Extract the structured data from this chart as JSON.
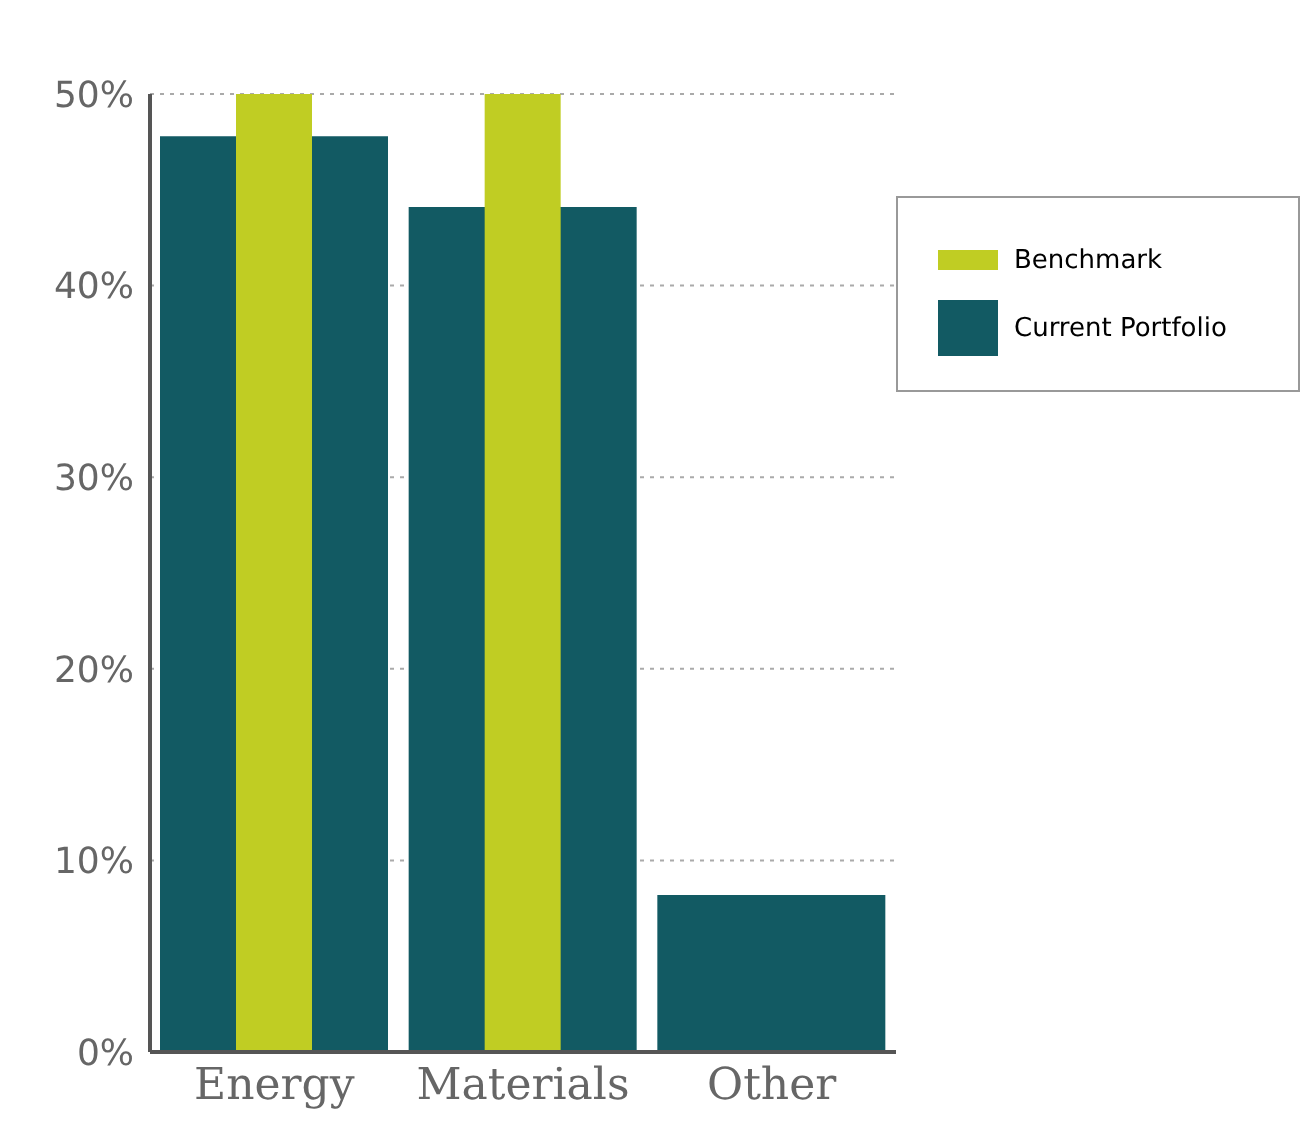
{
  "chart_data": {
    "type": "bar",
    "categories": [
      "Energy",
      "Materials",
      "Other"
    ],
    "series": [
      {
        "name": "Current Portfolio",
        "color": "#125a63",
        "values": [
          47.8,
          44.1,
          8.2
        ]
      },
      {
        "name": "Benchmark",
        "color": "#c0cd23",
        "values": [
          50,
          50,
          null
        ]
      }
    ],
    "ylim": [
      0,
      50
    ],
    "yticks": [
      {
        "value": 0,
        "label": "0%"
      },
      {
        "value": 10,
        "label": "10%"
      },
      {
        "value": 20,
        "label": "20%"
      },
      {
        "value": 30,
        "label": "30%"
      },
      {
        "value": 40,
        "label": "40%"
      },
      {
        "value": 50,
        "label": "50%"
      }
    ],
    "grid": "y",
    "legend": "top right"
  }
}
